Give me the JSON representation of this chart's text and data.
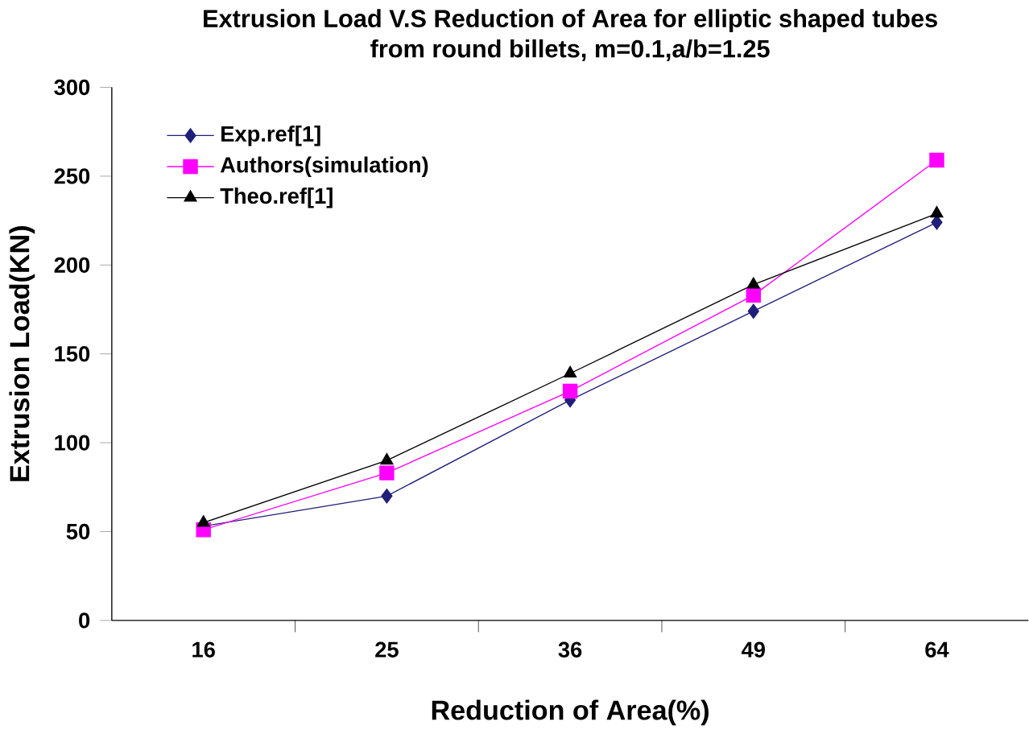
{
  "chart_data": {
    "type": "line",
    "title": "Extrusion Load V.S Reduction of Area for elliptic shaped tubes\nfrom round billets, m=0.1,a/b=1.25",
    "xlabel": "Reduction of Area(%)",
    "ylabel": "Extrusion Load(KN)",
    "categories": [
      "16",
      "25",
      "36",
      "49",
      "64"
    ],
    "ylim": [
      0,
      300
    ],
    "yticks": [
      0,
      50,
      100,
      150,
      200,
      250,
      300
    ],
    "grid": false,
    "legend": "top left",
    "series": [
      {
        "name": "Exp.ref[1]",
        "color": "#1f1f7a",
        "marker": "diamond",
        "values": [
          53,
          70,
          124,
          174,
          224
        ]
      },
      {
        "name": "Authors(simulation)",
        "color": "#ff00ff",
        "marker": "square",
        "values": [
          51,
          83,
          129,
          183,
          259
        ]
      },
      {
        "name": "Theo.ref[1]",
        "color": "#000000",
        "marker": "triangle",
        "values": [
          55,
          90,
          139,
          189,
          229
        ]
      }
    ]
  }
}
